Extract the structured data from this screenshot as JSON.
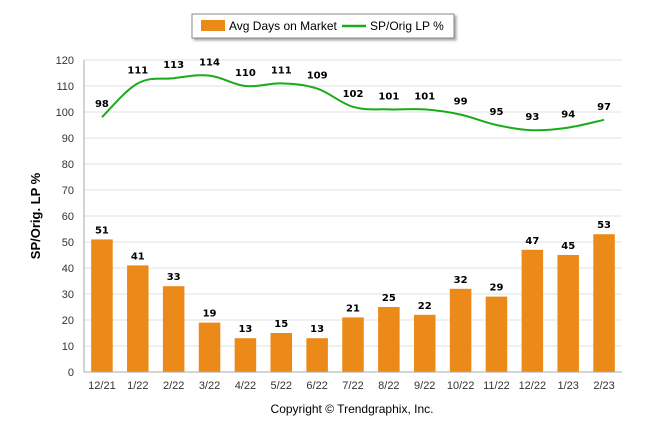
{
  "chart_data": {
    "type": "bar",
    "categories": [
      "12/21",
      "1/22",
      "2/22",
      "3/22",
      "4/22",
      "5/22",
      "6/22",
      "7/22",
      "8/22",
      "9/22",
      "10/22",
      "11/22",
      "12/22",
      "1/23",
      "2/23"
    ],
    "series": [
      {
        "name": "Avg Days on Market",
        "type": "bar",
        "values": [
          51,
          41,
          33,
          19,
          13,
          15,
          13,
          21,
          25,
          22,
          32,
          29,
          47,
          45,
          53
        ],
        "color": "#ec8a19"
      },
      {
        "name": "SP/Orig LP %",
        "type": "line",
        "values": [
          98,
          111,
          113,
          114,
          110,
          111,
          109,
          102,
          101,
          101,
          99,
          95,
          93,
          94,
          97
        ],
        "color": "#1aab1a"
      }
    ],
    "ylabel": "SP/Orig. LP %",
    "ylim": [
      0,
      120
    ],
    "yticks": [
      0,
      10,
      20,
      30,
      40,
      50,
      60,
      70,
      80,
      90,
      100,
      110,
      120
    ],
    "grid": true,
    "legend": "top-center",
    "footer": "Copyright © Trendgraphix, Inc."
  }
}
